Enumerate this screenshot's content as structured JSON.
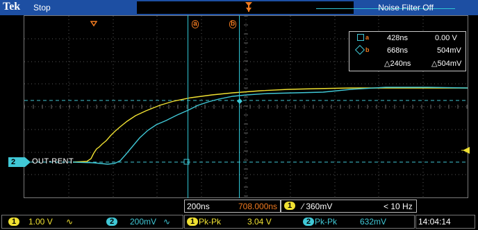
{
  "topbar": {
    "brand": "Tek",
    "status": "Stop",
    "noise_filter": "Noise Filter Off"
  },
  "cursor_markers": {
    "a": "a",
    "b": "b"
  },
  "measurements": {
    "row1": {
      "time": "428ns",
      "volt": "0.00 V"
    },
    "row2": {
      "time": "668ns",
      "volt": "504mV"
    },
    "delta": {
      "time": "△240ns",
      "volt": "△504mV"
    }
  },
  "channel2_label": {
    "num": "2",
    "name": "OUT-RENT"
  },
  "timebase": {
    "scale": "200ns",
    "position": "708.000ns"
  },
  "trigger": {
    "channel": "1",
    "slope_level": "⁄ 360mV",
    "freq": "< 10 Hz"
  },
  "channels": {
    "ch1": {
      "num": "1",
      "scale": "1.00 V",
      "coupling": "∿"
    },
    "ch2": {
      "num": "2",
      "scale": "200mV",
      "coupling": "∿"
    }
  },
  "meas_bottom": {
    "m1": {
      "num": "1",
      "label": "Pk-Pk",
      "value": "3.04 V"
    },
    "m2": {
      "num": "2",
      "label": "Pk-Pk",
      "value": "632mV"
    }
  },
  "clock": "14:04:14",
  "colors": {
    "ch1": "#f0e132",
    "ch2": "#40c8d6",
    "cursor_marker": "#f07a20",
    "topbar": "#1d4fa3"
  }
}
